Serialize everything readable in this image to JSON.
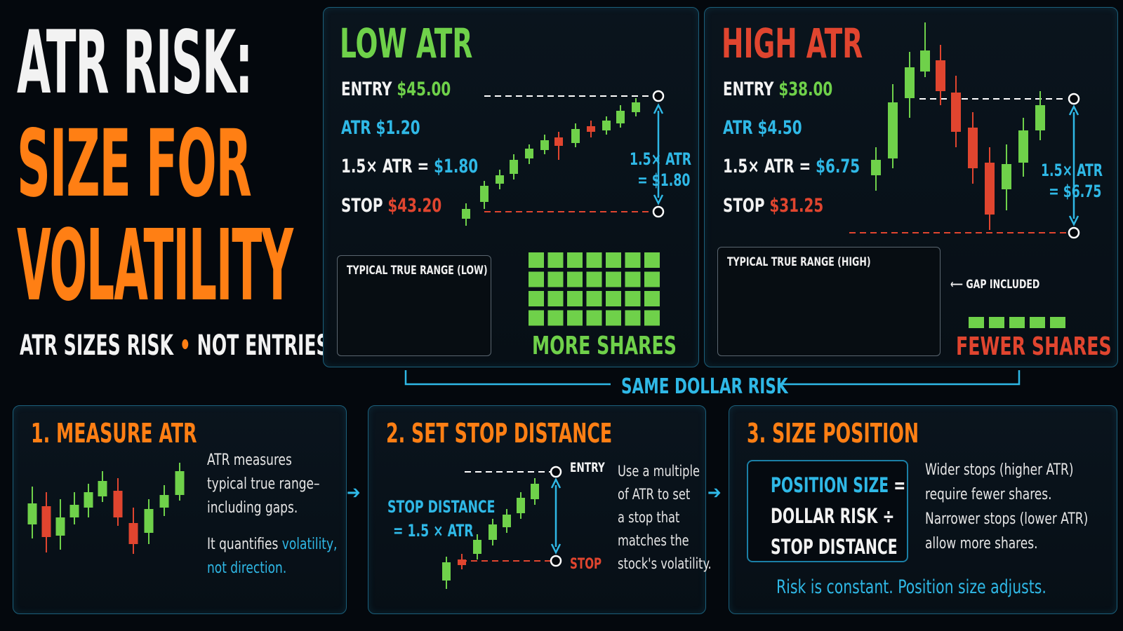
{
  "title": {
    "line1": "ATR RISK:",
    "line2": "SIZE FOR",
    "line3": "VOLATILITY"
  },
  "tagline": {
    "left": "ATR SIZES RISK",
    "dot": "•",
    "right": "NOT ENTRIES"
  },
  "low_atr": {
    "heading": "LOW ATR",
    "entry_label": "ENTRY",
    "entry_value": "$45.00",
    "atr_label": "ATR",
    "atr_value": "$1.20",
    "mult_label": "1.5× ATR =",
    "mult_value": "$1.80",
    "stop_label": "STOP",
    "stop_value": "$43.20",
    "annot_line1": "1.5× ATR",
    "annot_line2": "= $1.80",
    "range_box_title": "TYPICAL TRUE RANGE (LOW)",
    "shares_label": "MORE SHARES"
  },
  "high_atr": {
    "heading": "HIGH ATR",
    "entry_label": "ENTRY",
    "entry_value": "$38.00",
    "atr_label": "ATR",
    "atr_value": "$4.50",
    "mult_label": "1.5× ATR =",
    "mult_value": "$6.75",
    "stop_label": "STOP",
    "stop_value": "$31.25",
    "annot_line1": "1.5× ATR",
    "annot_line2": "= $6.75",
    "range_box_title": "TYPICAL TRUE RANGE (HIGH)",
    "gap_label": "GAP INCLUDED",
    "shares_label": "FEWER SHARES"
  },
  "same_risk": "SAME DOLLAR RISK",
  "step1": {
    "heading": "1. MEASURE ATR",
    "line1": "ATR measures",
    "line2": "typical true range–",
    "line3": "including gaps.",
    "line4": "It quantifies",
    "line4_hl": "volatility,",
    "line5_hl": "not direction."
  },
  "step2": {
    "heading": "2. SET STOP DISTANCE",
    "stop_dist_line1": "STOP DISTANCE",
    "stop_dist_line2": "= 1.5 × ATR",
    "entry_tag": "ENTRY",
    "stop_tag": "STOP",
    "line1": "Use a multiple",
    "line2": "of ATR to set",
    "line3": "a stop that",
    "line4": "matches the",
    "line5": "stock's volatility."
  },
  "step3": {
    "heading": "3. SIZE POSITION",
    "formula_line1": "POSITION SIZE",
    "formula_eq": "=",
    "formula_line2": "DOLLAR RISK ÷",
    "formula_line3": "STOP DISTANCE",
    "line1": "Wider stops (higher ATR)",
    "line2": "require fewer shares.",
    "line3": "Narrower stops (lower ATR)",
    "line4": "allow more shares.",
    "footer": "Risk is constant. Position size adjusts."
  },
  "arrow_glyph": "➔",
  "colors": {
    "green": "#6fd14a",
    "red": "#e0452f",
    "blue": "#2fb8e6",
    "orange": "#ff7f14",
    "panel_border": "#1b5f7a"
  }
}
